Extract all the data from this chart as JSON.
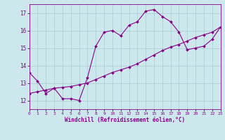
{
  "xlabel": "Windchill (Refroidissement éolien,°C)",
  "bg_color": "#cce8ec",
  "line_color": "#880088",
  "grid_color": "#aaccd4",
  "x_min": 0,
  "x_max": 23,
  "y_min": 11.5,
  "y_max": 17.5,
  "yticks": [
    12,
    13,
    14,
    15,
    16,
    17
  ],
  "xticks": [
    0,
    1,
    2,
    3,
    4,
    5,
    6,
    7,
    8,
    9,
    10,
    11,
    12,
    13,
    14,
    15,
    16,
    17,
    18,
    19,
    20,
    21,
    22,
    23
  ],
  "curve1_x": [
    0,
    1,
    2,
    3,
    4,
    5,
    6,
    7,
    8,
    9,
    10,
    11,
    12,
    13,
    14,
    15,
    16,
    17,
    18,
    19,
    20,
    21,
    22,
    23
  ],
  "curve1_y": [
    13.6,
    13.1,
    12.4,
    12.7,
    12.1,
    12.1,
    12.0,
    13.3,
    15.1,
    15.9,
    16.0,
    15.7,
    16.3,
    16.5,
    17.1,
    17.2,
    16.8,
    16.5,
    15.9,
    14.9,
    15.0,
    15.1,
    15.5,
    16.2
  ],
  "curve2_x": [
    0,
    1,
    2,
    3,
    4,
    5,
    6,
    7,
    8,
    9,
    10,
    11,
    12,
    13,
    14,
    15,
    16,
    17,
    18,
    19,
    20,
    21,
    22,
    23
  ],
  "curve2_y": [
    12.4,
    12.5,
    12.6,
    12.7,
    12.75,
    12.8,
    12.9,
    13.0,
    13.2,
    13.4,
    13.6,
    13.75,
    13.9,
    14.1,
    14.35,
    14.6,
    14.85,
    15.05,
    15.2,
    15.4,
    15.6,
    15.75,
    15.9,
    16.2
  ],
  "marker": "D",
  "marker_size": 2,
  "linewidth": 0.8
}
